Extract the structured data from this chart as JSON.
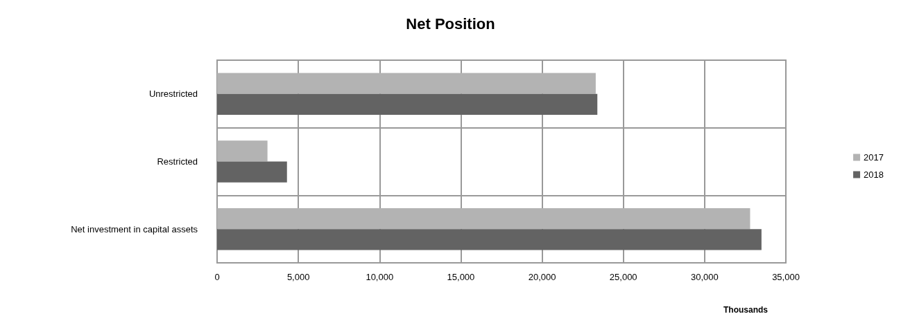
{
  "chart_data": {
    "type": "bar",
    "orientation": "horizontal",
    "title": "Net Position",
    "xlabel": "Thousands",
    "categories": [
      "Unrestricted",
      "Restricted",
      "Net investment in capital assets"
    ],
    "series": [
      {
        "name": "2017",
        "color": "#b3b3b3",
        "values": [
          23300,
          3100,
          32800
        ]
      },
      {
        "name": "2018",
        "color": "#636363",
        "values": [
          23400,
          4300,
          33500
        ]
      }
    ],
    "xlim": [
      0,
      35000
    ],
    "xticks": [
      0,
      {
        "value": 5000,
        "label": "5,000"
      },
      {
        "value": 10000,
        "label": "10,000"
      },
      {
        "value": 15000,
        "label": "15,000"
      },
      {
        "value": 20000,
        "label": "20,000"
      },
      {
        "value": 25000,
        "label": "25,000"
      },
      {
        "value": 30000,
        "label": "30,000"
      },
      {
        "value": 35000,
        "label": "35,000"
      }
    ],
    "grid": true,
    "legend": "right"
  }
}
